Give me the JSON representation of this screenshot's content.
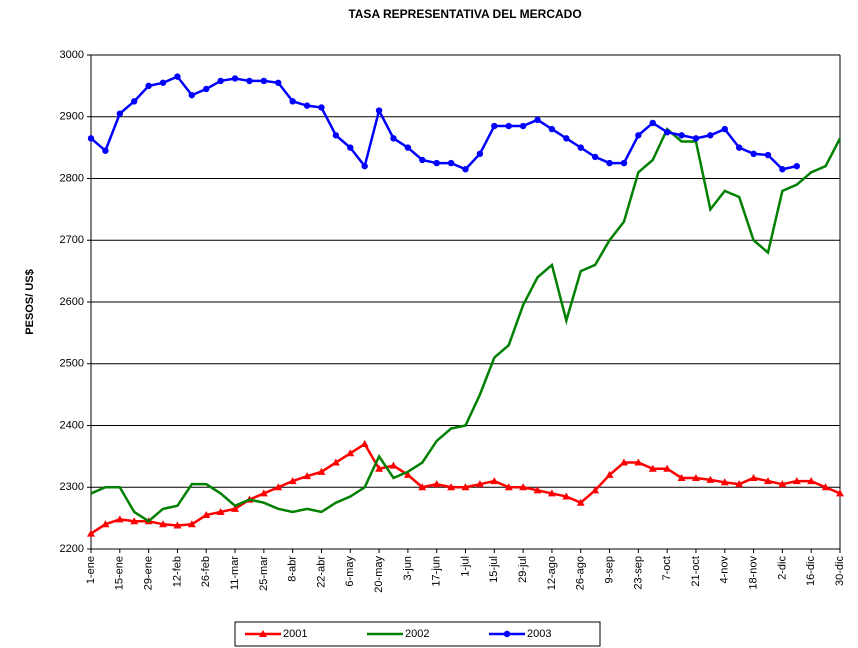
{
  "chart_data": {
    "type": "line",
    "title": "TASA REPRESENTATIVA DEL MERCADO",
    "y_label": "PESOS/ US$",
    "categories": [
      "1-ene",
      null,
      "15-ene",
      null,
      "29-ene",
      null,
      "12-feb",
      null,
      "26-feb",
      null,
      "11-mar",
      null,
      "25-mar",
      null,
      "8-abr",
      null,
      "22-abr",
      null,
      "6-may",
      null,
      "20-may",
      null,
      "3-jun",
      null,
      "17-jun",
      null,
      "1-jul",
      null,
      "15-jul",
      null,
      "29-jul",
      null,
      "12-ago",
      null,
      "26-ago",
      null,
      "9-sep",
      null,
      "23-sep",
      null,
      "7-oct",
      null,
      "21-oct",
      null,
      "4-nov",
      null,
      "18-nov",
      null,
      "2-dic",
      null,
      "16-dic",
      null,
      "30-dic"
    ],
    "series": [
      {
        "name": "2001",
        "color": "#ff0000",
        "marker": "triangle",
        "values": [
          2225,
          2240,
          2248,
          2245,
          2245,
          2240,
          2238,
          2240,
          2255,
          2260,
          2265,
          2280,
          2290,
          2300,
          2310,
          2318,
          2325,
          2340,
          2355,
          2370,
          2330,
          2335,
          2320,
          2300,
          2305,
          2300,
          2300,
          2305,
          2310,
          2300,
          2300,
          2295,
          2290,
          2285,
          2275,
          2295,
          2320,
          2340,
          2340,
          2330,
          2330,
          2315,
          2315,
          2312,
          2308,
          2305,
          2315,
          2310,
          2305,
          2310,
          2310,
          2300,
          2290
        ]
      },
      {
        "name": "2002",
        "color": "#008000",
        "marker": "none",
        "values": [
          2290,
          2300,
          2300,
          2260,
          2245,
          2265,
          2270,
          2305,
          2305,
          2290,
          2270,
          2280,
          2275,
          2265,
          2260,
          2265,
          2260,
          2275,
          2285,
          2300,
          2350,
          2315,
          2325,
          2340,
          2375,
          2395,
          2400,
          2450,
          2510,
          2530,
          2595,
          2640,
          2660,
          2570,
          2650,
          2660,
          2700,
          2730,
          2810,
          2830,
          2880,
          2860,
          2860,
          2750,
          2780,
          2770,
          2700,
          2680,
          2780,
          2790,
          2810,
          2820,
          2865
        ]
      },
      {
        "name": "2003",
        "color": "#0000ff",
        "marker": "circle",
        "values": [
          2865,
          2845,
          2905,
          2925,
          2950,
          2955,
          2965,
          2935,
          2945,
          2958,
          2962,
          2958,
          2958,
          2955,
          2925,
          2918,
          2915,
          2870,
          2850,
          2820,
          2910,
          2865,
          2850,
          2830,
          2825,
          2825,
          2815,
          2840,
          2885,
          2885,
          2885,
          2895,
          2880,
          2865,
          2850,
          2835,
          2825,
          2825,
          2870,
          2890,
          2875,
          2870,
          2865,
          2870,
          2880,
          2850,
          2840,
          2838,
          2815,
          2820,
          null,
          null,
          null
        ]
      }
    ],
    "ylim": [
      2200,
      3000
    ],
    "yticks": [
      2200,
      2300,
      2400,
      2500,
      2600,
      2700,
      2800,
      2900,
      3000
    ],
    "grid": true,
    "legend": "bottom"
  }
}
